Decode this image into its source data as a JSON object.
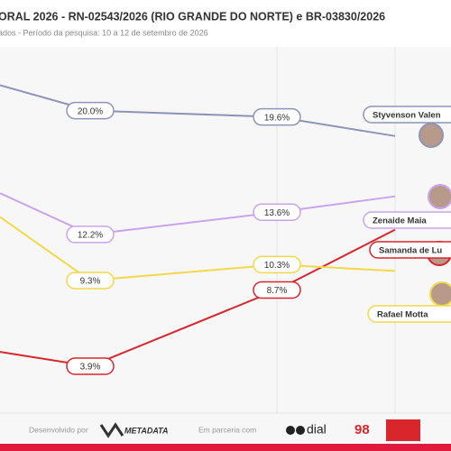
{
  "chart_data": {
    "type": "line",
    "title": "ORAL 2026 - RN-02543/2026 (RIO GRANDE DO NORTE) e BR-03830/2026",
    "subtitle": "ados - Período da pesquisa: 10 a 12 de setembro de 2026",
    "series": [
      {
        "name": "Styvenson Valen",
        "color": "#8e93b8",
        "values": [
          21.6,
          20.0,
          19.6,
          18.4
        ],
        "value_labels": [
          null,
          "20.0%",
          "19.6%",
          null
        ]
      },
      {
        "name": "Zenaide Maia",
        "color": "#c9a4ee",
        "values": [
          14.8,
          12.2,
          13.6,
          14.6
        ],
        "value_labels": [
          null,
          "12.2%",
          "13.6%",
          null
        ]
      },
      {
        "name": "Samanda de Lu",
        "color": "#d8262c",
        "values": [
          4.8,
          3.9,
          8.7,
          12.5
        ],
        "value_labels": [
          null,
          "3.9%",
          "8.7%",
          null
        ]
      },
      {
        "name": "Rafael Motta",
        "color": "#f2d94a",
        "values": [
          13.3,
          9.3,
          10.3,
          9.9
        ],
        "value_labels": [
          null,
          "9.3%",
          "10.3%",
          null
        ]
      }
    ],
    "footer": {
      "developed_by": "Desenvolvido por",
      "developer": "METADATA",
      "partners_label": "Em parceria com",
      "partner_1": "dial",
      "partner_2": "98"
    }
  }
}
